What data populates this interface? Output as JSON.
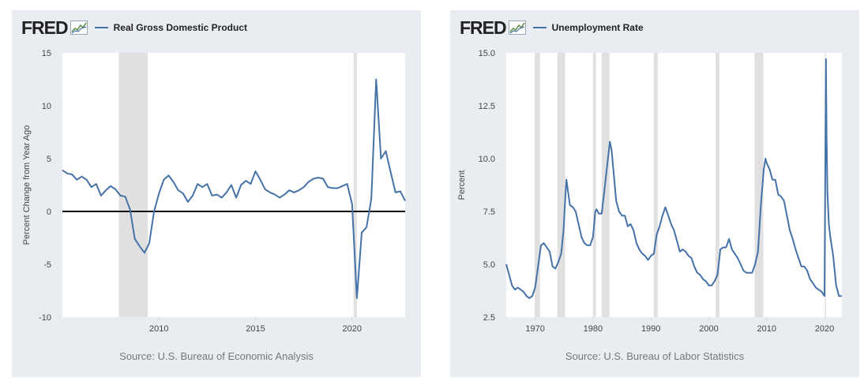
{
  "charts": [
    {
      "logo_text": "FRED",
      "series_name": "Real Gross Domestic Product",
      "source": "Source: U.S. Bureau of Economic Analysis",
      "line_color": "#4572a7"
    },
    {
      "logo_text": "FRED",
      "series_name": "Unemployment Rate",
      "source": "Source: U.S. Bureau of Labor Statistics",
      "line_color": "#4572a7"
    }
  ],
  "chart_data": [
    {
      "type": "line",
      "title": "Real Gross Domestic Product",
      "ylabel": "Percent Change from Year Ago",
      "xlabel": "",
      "xlim": [
        2005.0,
        2022.75
      ],
      "ylim": [
        -10,
        15
      ],
      "yticks": [
        -10,
        -5,
        0,
        5,
        10,
        15
      ],
      "ytick_labels": [
        "-10",
        "-5",
        "0",
        "5",
        "10",
        "15"
      ],
      "xticks": [
        2010,
        2015,
        2020
      ],
      "xtick_labels": [
        "2010",
        "2015",
        "2020"
      ],
      "zero_line": true,
      "recessions": [
        [
          2007.92,
          2009.42
        ],
        [
          2020.08,
          2020.25
        ]
      ],
      "series": [
        {
          "name": "Real Gross Domestic Product",
          "x": [
            2005.0,
            2005.25,
            2005.5,
            2005.75,
            2006.0,
            2006.25,
            2006.5,
            2006.75,
            2007.0,
            2007.25,
            2007.5,
            2007.75,
            2008.0,
            2008.25,
            2008.5,
            2008.75,
            2009.0,
            2009.25,
            2009.5,
            2009.75,
            2010.0,
            2010.25,
            2010.5,
            2010.75,
            2011.0,
            2011.25,
            2011.5,
            2011.75,
            2012.0,
            2012.25,
            2012.5,
            2012.75,
            2013.0,
            2013.25,
            2013.5,
            2013.75,
            2014.0,
            2014.25,
            2014.5,
            2014.75,
            2015.0,
            2015.25,
            2015.5,
            2015.75,
            2016.0,
            2016.25,
            2016.5,
            2016.75,
            2017.0,
            2017.25,
            2017.5,
            2017.75,
            2018.0,
            2018.25,
            2018.5,
            2018.75,
            2019.0,
            2019.25,
            2019.5,
            2019.75,
            2020.0,
            2020.25,
            2020.5,
            2020.75,
            2021.0,
            2021.25,
            2021.5,
            2021.75,
            2022.0,
            2022.25,
            2022.5,
            2022.75
          ],
          "values": [
            3.9,
            3.6,
            3.5,
            3.0,
            3.3,
            3.0,
            2.3,
            2.6,
            1.5,
            2.0,
            2.4,
            2.1,
            1.5,
            1.4,
            0.2,
            -2.6,
            -3.3,
            -3.9,
            -3.0,
            0.0,
            1.7,
            3.0,
            3.4,
            2.8,
            2.0,
            1.7,
            0.9,
            1.5,
            2.6,
            2.3,
            2.6,
            1.5,
            1.6,
            1.3,
            1.8,
            2.5,
            1.3,
            2.5,
            2.9,
            2.6,
            3.8,
            3.0,
            2.1,
            1.8,
            1.6,
            1.3,
            1.6,
            2.0,
            1.8,
            2.0,
            2.3,
            2.8,
            3.1,
            3.2,
            3.1,
            2.3,
            2.2,
            2.2,
            2.4,
            2.6,
            0.7,
            -8.2,
            -2.0,
            -1.5,
            1.2,
            12.5,
            5.0,
            5.7,
            3.7,
            1.8,
            1.9,
            1.0
          ]
        }
      ]
    },
    {
      "type": "line",
      "title": "Unemployment Rate",
      "ylabel": "Percent",
      "xlabel": "",
      "xlim": [
        1965.0,
        2023.0
      ],
      "ylim": [
        2.5,
        15.0
      ],
      "yticks": [
        2.5,
        5.0,
        7.5,
        10.0,
        12.5,
        15.0
      ],
      "ytick_labels": [
        "2.5",
        "5.0",
        "7.5",
        "10.0",
        "12.5",
        "15.0"
      ],
      "xticks": [
        1970,
        1980,
        1990,
        2000,
        2010,
        2020
      ],
      "xtick_labels": [
        "1970",
        "1980",
        "1990",
        "2000",
        "2010",
        "2020"
      ],
      "recessions": [
        [
          1969.92,
          1970.83
        ],
        [
          1973.83,
          1975.17
        ],
        [
          1980.0,
          1980.5
        ],
        [
          1981.5,
          1982.83
        ],
        [
          1990.5,
          1991.17
        ],
        [
          2001.17,
          2001.83
        ],
        [
          2007.92,
          2009.42
        ],
        [
          2020.08,
          2020.25
        ]
      ],
      "series": [
        {
          "name": "Unemployment Rate",
          "x": [
            1965.0,
            1965.5,
            1966.0,
            1966.5,
            1967.0,
            1967.5,
            1968.0,
            1968.5,
            1969.0,
            1969.5,
            1970.0,
            1970.5,
            1971.0,
            1971.5,
            1972.0,
            1972.5,
            1973.0,
            1973.5,
            1974.0,
            1974.5,
            1974.9,
            1975.2,
            1975.4,
            1975.7,
            1976.0,
            1976.5,
            1977.0,
            1977.5,
            1978.0,
            1978.5,
            1979.0,
            1979.5,
            1980.0,
            1980.4,
            1980.6,
            1981.0,
            1981.5,
            1982.0,
            1982.5,
            1982.9,
            1983.2,
            1983.5,
            1984.0,
            1984.5,
            1985.0,
            1985.5,
            1986.0,
            1986.5,
            1987.0,
            1987.5,
            1988.0,
            1988.5,
            1989.0,
            1989.5,
            1990.0,
            1990.5,
            1991.0,
            1991.5,
            1992.0,
            1992.5,
            1993.0,
            1993.5,
            1994.0,
            1994.5,
            1995.0,
            1995.5,
            1996.0,
            1996.5,
            1997.0,
            1997.5,
            1998.0,
            1998.5,
            1999.0,
            1999.5,
            2000.0,
            2000.5,
            2001.0,
            2001.5,
            2002.0,
            2002.5,
            2003.0,
            2003.5,
            2004.0,
            2004.5,
            2005.0,
            2005.5,
            2006.0,
            2006.5,
            2007.0,
            2007.5,
            2008.0,
            2008.5,
            2009.0,
            2009.5,
            2009.8,
            2010.0,
            2010.5,
            2011.0,
            2011.5,
            2012.0,
            2012.5,
            2013.0,
            2013.5,
            2014.0,
            2014.5,
            2015.0,
            2015.5,
            2016.0,
            2016.5,
            2017.0,
            2017.5,
            2018.0,
            2018.5,
            2019.0,
            2019.5,
            2020.0,
            2020.25,
            2020.35,
            2020.5,
            2020.75,
            2021.0,
            2021.5,
            2022.0,
            2022.5,
            2023.0
          ],
          "values": [
            5.0,
            4.5,
            4.0,
            3.8,
            3.9,
            3.8,
            3.7,
            3.5,
            3.4,
            3.5,
            3.9,
            4.9,
            5.9,
            6.0,
            5.8,
            5.6,
            4.9,
            4.8,
            5.1,
            5.5,
            6.6,
            8.1,
            9.0,
            8.4,
            7.8,
            7.7,
            7.5,
            6.9,
            6.3,
            6.0,
            5.9,
            5.9,
            6.3,
            7.5,
            7.6,
            7.4,
            7.4,
            8.6,
            9.8,
            10.8,
            10.4,
            9.5,
            8.0,
            7.5,
            7.3,
            7.3,
            6.8,
            6.9,
            6.6,
            6.0,
            5.7,
            5.5,
            5.4,
            5.2,
            5.4,
            5.5,
            6.4,
            6.8,
            7.3,
            7.7,
            7.3,
            6.9,
            6.6,
            6.1,
            5.6,
            5.7,
            5.6,
            5.4,
            5.3,
            4.9,
            4.6,
            4.5,
            4.3,
            4.2,
            4.0,
            4.0,
            4.2,
            4.5,
            5.7,
            5.8,
            5.8,
            6.2,
            5.7,
            5.5,
            5.3,
            5.0,
            4.7,
            4.6,
            4.6,
            4.6,
            5.0,
            5.6,
            7.8,
            9.5,
            10.0,
            9.8,
            9.5,
            9.0,
            9.0,
            8.3,
            8.2,
            8.0,
            7.3,
            6.6,
            6.2,
            5.7,
            5.3,
            4.9,
            4.9,
            4.7,
            4.3,
            4.1,
            3.9,
            3.8,
            3.7,
            3.5,
            14.7,
            11.1,
            8.4,
            6.9,
            6.3,
            5.4,
            4.0,
            3.5,
            3.5
          ]
        }
      ]
    }
  ]
}
